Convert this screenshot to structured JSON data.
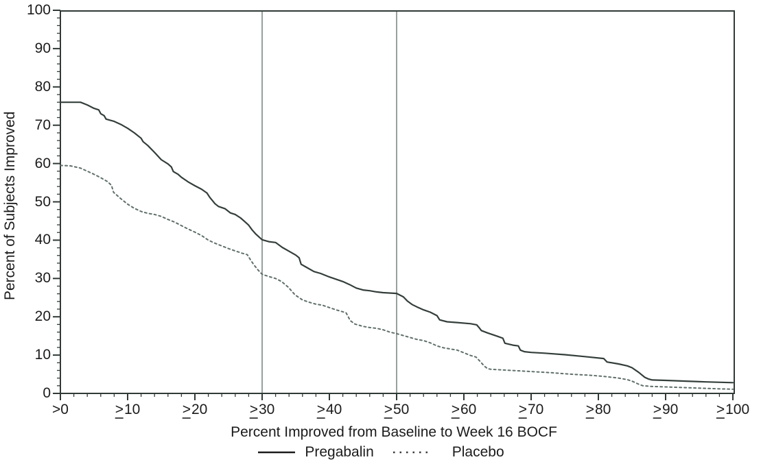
{
  "chart_data": {
    "type": "line",
    "title": "",
    "xlabel": "Percent Improved from Baseline to Week 16 BOCF",
    "ylabel": "Percent of Subjects Improved",
    "xlim": [
      0,
      100
    ],
    "ylim": [
      0,
      100
    ],
    "grid": false,
    "legend_position": "bottom",
    "x_tick_values": [
      0,
      10,
      20,
      30,
      40,
      50,
      60,
      70,
      80,
      90,
      100
    ],
    "x_tick_labels": [
      ">0",
      "≥10",
      "≥20",
      "≥30",
      "≥40",
      "≥50",
      "≥60",
      "≥70",
      "≥80",
      "≥90",
      "≥100"
    ],
    "y_tick_values": [
      0,
      10,
      20,
      30,
      40,
      50,
      60,
      70,
      80,
      90,
      100
    ],
    "minor_tick_step": 2,
    "reference_lines_x": [
      30,
      50
    ],
    "colors": {
      "pregabalin_line": "#333e3a",
      "placebo_line": "#5f6f6a",
      "reference_line": "#97a09c",
      "axis": "#2f3936",
      "text": "#1b1b1b",
      "background": "#ffffff"
    },
    "series": [
      {
        "name": "Pregabalin",
        "line_style": "solid",
        "points": [
          [
            0,
            76
          ],
          [
            3,
            76
          ],
          [
            4,
            75.3
          ],
          [
            5,
            74.4
          ],
          [
            5.7,
            74
          ],
          [
            6,
            73
          ],
          [
            6.5,
            72.5
          ],
          [
            6.8,
            71.6
          ],
          [
            8,
            71
          ],
          [
            9,
            70.2
          ],
          [
            10,
            69.2
          ],
          [
            11,
            68
          ],
          [
            12,
            66.6
          ],
          [
            12.3,
            65.7
          ],
          [
            13,
            64.7
          ],
          [
            14,
            62.9
          ],
          [
            15,
            61
          ],
          [
            16,
            59.9
          ],
          [
            16.5,
            59.1
          ],
          [
            16.8,
            57.9
          ],
          [
            17.5,
            57.2
          ],
          [
            18,
            56.4
          ],
          [
            19,
            55.2
          ],
          [
            20,
            54.2
          ],
          [
            21,
            53.3
          ],
          [
            21.8,
            52.3
          ],
          [
            22.2,
            51.2
          ],
          [
            23,
            49.5
          ],
          [
            23.5,
            48.8
          ],
          [
            24.5,
            48.2
          ],
          [
            25.3,
            47.1
          ],
          [
            26,
            46.7
          ],
          [
            26.8,
            45.8
          ],
          [
            27.5,
            44.7
          ],
          [
            28,
            43.9
          ],
          [
            28.5,
            42.7
          ],
          [
            29,
            41.7
          ],
          [
            29.5,
            40.9
          ],
          [
            30,
            40.1
          ],
          [
            31,
            39.6
          ],
          [
            32,
            39.4
          ],
          [
            33,
            38.1
          ],
          [
            34,
            37.1
          ],
          [
            35,
            36.1
          ],
          [
            35.5,
            35.4
          ],
          [
            35.8,
            33.7
          ],
          [
            36.5,
            33
          ],
          [
            37.7,
            31.8
          ],
          [
            38.7,
            31.3
          ],
          [
            40,
            30.4
          ],
          [
            41,
            29.8
          ],
          [
            42,
            29.2
          ],
          [
            43,
            28.4
          ],
          [
            44,
            27.5
          ],
          [
            45,
            27
          ],
          [
            46,
            26.8
          ],
          [
            47,
            26.5
          ],
          [
            48,
            26.3
          ],
          [
            50,
            26.1
          ],
          [
            51,
            25.2
          ],
          [
            51.6,
            24.1
          ],
          [
            52.3,
            23.2
          ],
          [
            53,
            22.6
          ],
          [
            54,
            21.8
          ],
          [
            55,
            21.2
          ],
          [
            56,
            20.3
          ],
          [
            56.4,
            19.2
          ],
          [
            57.5,
            18.7
          ],
          [
            59,
            18.5
          ],
          [
            61,
            18.2
          ],
          [
            61.9,
            17.9
          ],
          [
            62.3,
            17.1
          ],
          [
            62.6,
            16.4
          ],
          [
            63.5,
            15.8
          ],
          [
            65,
            14.9
          ],
          [
            65.8,
            14.4
          ],
          [
            66.1,
            13.1
          ],
          [
            67.3,
            12.6
          ],
          [
            68.1,
            12.4
          ],
          [
            68.4,
            11.3
          ],
          [
            69,
            10.9
          ],
          [
            70,
            10.7
          ],
          [
            72,
            10.5
          ],
          [
            75,
            10.1
          ],
          [
            78,
            9.6
          ],
          [
            80.8,
            9.1
          ],
          [
            81.3,
            8.2
          ],
          [
            83,
            7.7
          ],
          [
            84.3,
            7.2
          ],
          [
            85,
            6.7
          ],
          [
            86,
            5.5
          ],
          [
            86.9,
            4.2
          ],
          [
            87.4,
            3.8
          ],
          [
            88,
            3.5
          ],
          [
            90,
            3.4
          ],
          [
            93,
            3.2
          ],
          [
            96,
            3
          ],
          [
            100,
            2.8
          ]
        ]
      },
      {
        "name": "Placebo",
        "line_style": "dashed",
        "points": [
          [
            0,
            59.5
          ],
          [
            1.5,
            59.4
          ],
          [
            3,
            58.8
          ],
          [
            4,
            58
          ],
          [
            5,
            57.2
          ],
          [
            6,
            56.3
          ],
          [
            7,
            55.3
          ],
          [
            7.6,
            54.3
          ],
          [
            7.9,
            52.5
          ],
          [
            9,
            50.8
          ],
          [
            10,
            49.4
          ],
          [
            11,
            48.3
          ],
          [
            12,
            47.5
          ],
          [
            13,
            47
          ],
          [
            14,
            46.7
          ],
          [
            15,
            46.2
          ],
          [
            16,
            45.4
          ],
          [
            17,
            44.7
          ],
          [
            18,
            43.8
          ],
          [
            19,
            42.9
          ],
          [
            20,
            42.1
          ],
          [
            21,
            41.2
          ],
          [
            22,
            40
          ],
          [
            23,
            39.2
          ],
          [
            24,
            38.5
          ],
          [
            25,
            37.8
          ],
          [
            26,
            37.2
          ],
          [
            27,
            36.6
          ],
          [
            27.8,
            36.2
          ],
          [
            28.3,
            34.8
          ],
          [
            28.8,
            33.5
          ],
          [
            29.4,
            32.2
          ],
          [
            30,
            31.1
          ],
          [
            31,
            30.5
          ],
          [
            32,
            30
          ],
          [
            32.9,
            29.2
          ],
          [
            33.9,
            27.7
          ],
          [
            34.9,
            25.7
          ],
          [
            36,
            24.4
          ],
          [
            37,
            23.8
          ],
          [
            38,
            23.3
          ],
          [
            39,
            23
          ],
          [
            40,
            22.4
          ],
          [
            41,
            21.8
          ],
          [
            42,
            21.3
          ],
          [
            42.5,
            21
          ],
          [
            43.1,
            19
          ],
          [
            43.8,
            18.1
          ],
          [
            45,
            17.5
          ],
          [
            46,
            17.2
          ],
          [
            47,
            17
          ],
          [
            48,
            16.6
          ],
          [
            49,
            16
          ],
          [
            50,
            15.6
          ],
          [
            51,
            15.1
          ],
          [
            52,
            14.6
          ],
          [
            53,
            14.1
          ],
          [
            54,
            13.8
          ],
          [
            55,
            13.2
          ],
          [
            56,
            12.4
          ],
          [
            57,
            11.9
          ],
          [
            58,
            11.6
          ],
          [
            59,
            11.3
          ],
          [
            60,
            10.6
          ],
          [
            61,
            9.9
          ],
          [
            61.8,
            9.5
          ],
          [
            62.5,
            8.2
          ],
          [
            63,
            7.2
          ],
          [
            63.5,
            6.5
          ],
          [
            64,
            6.3
          ],
          [
            66,
            6.1
          ],
          [
            68,
            5.9
          ],
          [
            70,
            5.7
          ],
          [
            73,
            5.4
          ],
          [
            76,
            5
          ],
          [
            79,
            4.7
          ],
          [
            81,
            4.4
          ],
          [
            83,
            4
          ],
          [
            84.3,
            3.6
          ],
          [
            85,
            3.2
          ],
          [
            86,
            2.4
          ],
          [
            86.6,
            2
          ],
          [
            88,
            1.8
          ],
          [
            90,
            1.7
          ],
          [
            93,
            1.5
          ],
          [
            96,
            1.3
          ],
          [
            100,
            1.1
          ]
        ]
      }
    ],
    "legend": [
      {
        "label": "Pregabalin",
        "line_style": "solid"
      },
      {
        "label": "Placebo",
        "line_style": "dashed"
      }
    ]
  }
}
